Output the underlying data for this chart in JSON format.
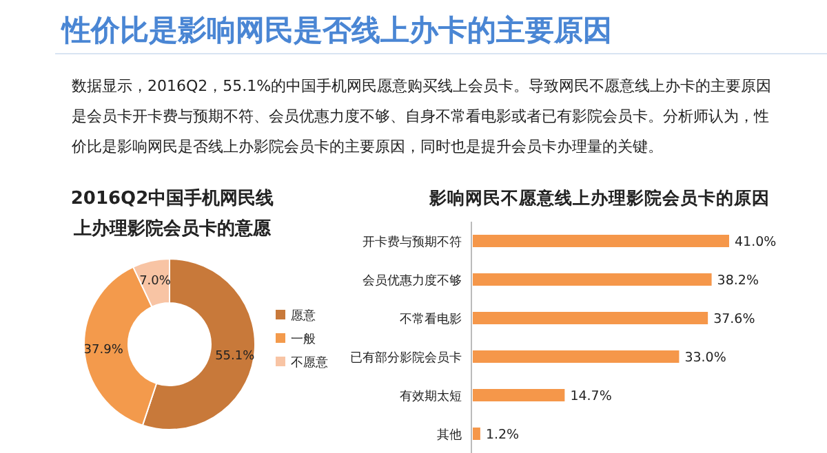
{
  "chart_data": [
    {
      "type": "other",
      "title": "性价比是影响网民是否线上办卡的主要原因",
      "annotations": [
        "数据显示，2016Q2，55.1%的中国手机网民愿意购买线上会员卡。导致网民不愿意线上办卡的主要原因是会员卡开卡费与预期不符、会员优惠力度不够、自身不常看电影或者已有影院会员卡。分析师认为，性价比是影响网民是否线上办影院会员卡的主要原因，同时也是提升会员卡办理量的关键。"
      ]
    },
    {
      "type": "donut",
      "title": "2016Q2中国手机网民线上办理影院会员卡的意愿",
      "categories": [
        "愿意",
        "一般",
        "不愿意"
      ],
      "values": [
        55.1,
        37.9,
        7.0
      ],
      "colors": [
        "#c8793a",
        "#f39a4c",
        "#f8c4a4"
      ],
      "value_labels": [
        "55.1%",
        "37.9%",
        "7.0%"
      ],
      "legend": "right"
    },
    {
      "type": "bar",
      "orientation": "horizontal",
      "title": "影响网民不愿意线上办理影院会员卡的原因",
      "categories": [
        "开卡费与预期不符",
        "会员优惠力度不够",
        "不常看电影",
        "已有部分影院会员卡",
        "有效期太短",
        "其他"
      ],
      "values": [
        41.0,
        38.2,
        37.6,
        33.0,
        14.7,
        1.2
      ],
      "color": "#f5974a",
      "value_labels": [
        "41.0%",
        "38.2%",
        "37.6%",
        "33.0%",
        "14.7%",
        "1.2%"
      ]
    }
  ]
}
